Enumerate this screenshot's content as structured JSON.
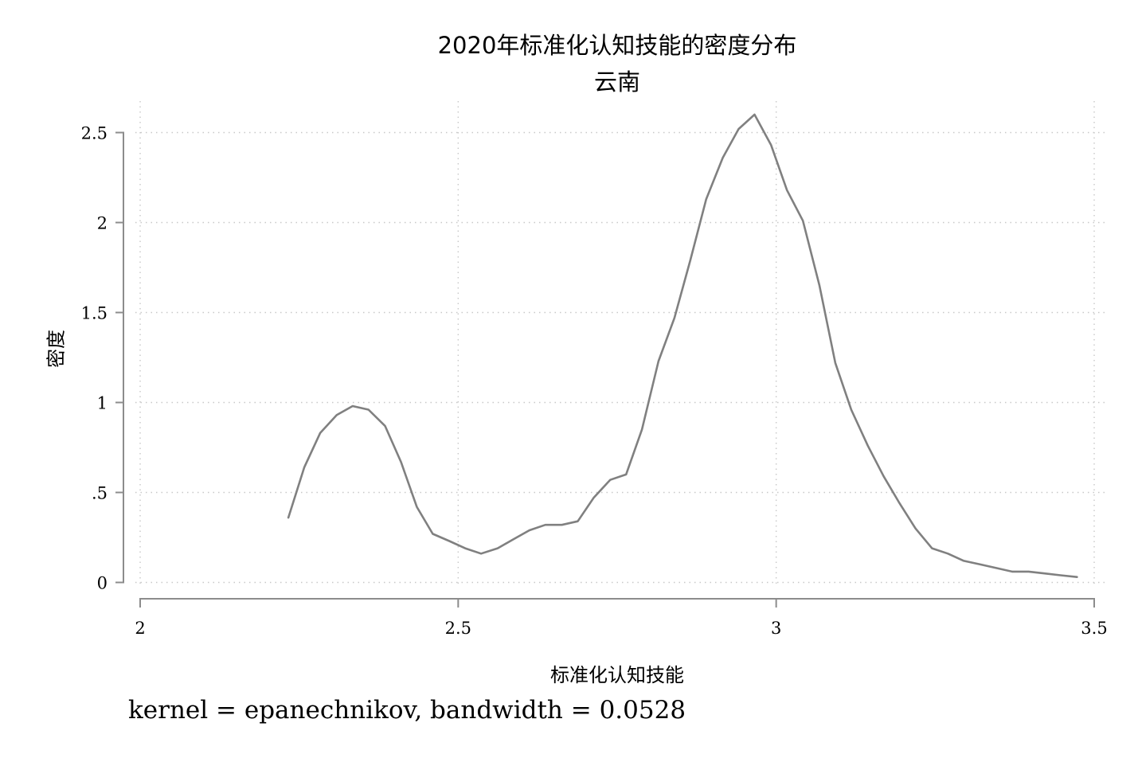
{
  "chart_data": {
    "type": "line",
    "title": "2020年标准化认知技能的密度分布",
    "subtitle": "云南",
    "xlabel": "标准化认知技能",
    "ylabel": "密度",
    "note": "kernel = epanechnikov, bandwidth = 0.0528",
    "xlim": [
      2,
      3.5
    ],
    "ylim": [
      0,
      2.6
    ],
    "x_ticks": [
      2,
      2.5,
      3,
      3.5
    ],
    "x_tick_labels": [
      "2",
      "2.5",
      "3",
      "3.5"
    ],
    "y_ticks": [
      0,
      0.5,
      1,
      1.5,
      2,
      2.5
    ],
    "y_tick_labels": [
      "0",
      ".5",
      "1",
      "1.5",
      "2",
      "2.5"
    ],
    "grid": true,
    "line_color": "#808080",
    "series": [
      {
        "x": [
          2.233,
          2.258,
          2.283,
          2.309,
          2.334,
          2.359,
          2.385,
          2.41,
          2.435,
          2.46,
          2.486,
          2.511,
          2.536,
          2.562,
          2.587,
          2.612,
          2.637,
          2.663,
          2.688,
          2.713,
          2.739,
          2.764,
          2.789,
          2.815,
          2.84,
          2.865,
          2.89,
          2.916,
          2.941,
          2.966,
          2.992,
          3.017,
          3.042,
          3.068,
          3.093,
          3.118,
          3.144,
          3.169,
          3.194,
          3.219,
          3.245,
          3.27,
          3.295,
          3.321,
          3.346,
          3.371,
          3.397,
          3.422,
          3.447,
          3.473
        ],
        "values": [
          0.36,
          0.64,
          0.83,
          0.93,
          0.98,
          0.96,
          0.87,
          0.67,
          0.42,
          0.27,
          0.23,
          0.19,
          0.16,
          0.19,
          0.24,
          0.29,
          0.32,
          0.32,
          0.34,
          0.47,
          0.57,
          0.6,
          0.85,
          1.23,
          1.47,
          1.79,
          2.13,
          2.36,
          2.52,
          2.6,
          2.43,
          2.18,
          2.01,
          1.65,
          1.22,
          0.96,
          0.76,
          0.59,
          0.44,
          0.3,
          0.19,
          0.16,
          0.12,
          0.1,
          0.08,
          0.06,
          0.06,
          0.05,
          0.04,
          0.03
        ]
      }
    ]
  }
}
